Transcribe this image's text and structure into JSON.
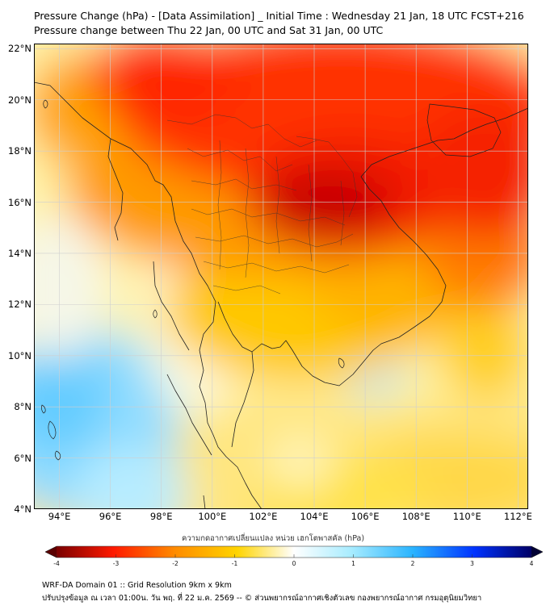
{
  "title_line1": "Pressure Change (hPa) - [Data Assimilation] _ Initial Time : Wednesday 21 Jan, 18 UTC FCST+216",
  "title_line2": "Pressure change between Thu 22 Jan, 00 UTC and Sat 31 Jan, 00 UTC",
  "map": {
    "lat_labels": [
      "22°N",
      "20°N",
      "18°N",
      "16°N",
      "14°N",
      "12°N",
      "10°N",
      "8°N",
      "6°N",
      "4°N"
    ],
    "lon_labels": [
      "94°E",
      "96°E",
      "98°E",
      "100°E",
      "102°E",
      "104°E",
      "106°E",
      "108°E",
      "110°E",
      "112°E"
    ],
    "lat_range": [
      4,
      22.2
    ],
    "lon_range": [
      93,
      112.4
    ],
    "field_description": "pressure change (hPa)"
  },
  "colorbar": {
    "title": "ความกดอากาศเปลี่ยนแปลง หน่วย เฮกโตพาสคัล (hPa)",
    "ticks": [
      "-4",
      "-3",
      "-2",
      "-1",
      "0",
      "1",
      "2",
      "3",
      "4"
    ],
    "range": [
      -4,
      4
    ],
    "colors": {
      "min": "#7a0000",
      "neg_high": "#ff1a00",
      "neg_mid": "#ff8c00",
      "neg_low": "#ffd400",
      "zero": "#ffffff",
      "pos_low": "#a8ecff",
      "pos_mid": "#2ab4ff",
      "pos_high": "#0033ff",
      "max": "#000066"
    }
  },
  "footer_line1": "WRF-DA Domain 01 :: Grid Resolution 9km x 9km",
  "footer_line2": "ปรับปรุงข้อมูล ณ เวลา 01:00น. วัน พฤ. ที่ 22 ม.ค. 2569 -- © ส่วนพยากรณ์อากาศเชิงตัวเลข กองพยากรณ์อากาศ กรมอุตุนิยมวิทยา"
}
